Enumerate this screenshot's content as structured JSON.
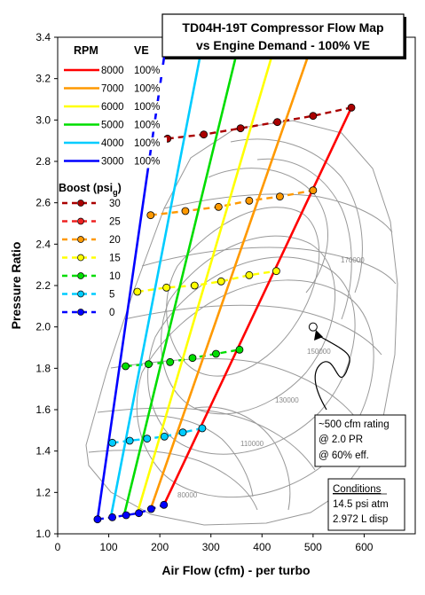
{
  "chart_data": {
    "type": "line",
    "title": [
      "TD04H-19T Compressor Flow Map",
      "vs Engine Demand - 100% VE"
    ],
    "xlabel": "Air Flow (cfm) - per turbo",
    "ylabel": "Pressure Ratio",
    "xlim": [
      0,
      700
    ],
    "ylim": [
      1.0,
      3.4
    ],
    "xticks": [
      "0",
      "100",
      "200",
      "300",
      "400",
      "500",
      "600"
    ],
    "yticks": [
      "1.0",
      "1.2",
      "1.4",
      "1.6",
      "1.8",
      "2.0",
      "2.2",
      "2.4",
      "2.6",
      "2.8",
      "3.0",
      "3.2",
      "3.4"
    ],
    "legend": {
      "rpm_header": "RPM",
      "ve_header": "VE",
      "boost_header": "Boost (psi",
      "boost_header_sub": "g",
      "boost_header_close": ")"
    },
    "rpm_lines": [
      {
        "rpm": "8000",
        "ve": "100%",
        "color": "#ff0000",
        "x": [
          208,
          575
        ],
        "y": [
          1.14,
          3.06
        ]
      },
      {
        "rpm": "7000",
        "ve": "100%",
        "color": "#ff9900",
        "x": [
          182,
          503
        ],
        "y": [
          1.12,
          3.4
        ]
      },
      {
        "rpm": "6000",
        "ve": "100%",
        "color": "#ffff00",
        "x": [
          156,
          430
        ],
        "y": [
          1.1,
          3.4
        ]
      },
      {
        "rpm": "5000",
        "ve": "100%",
        "color": "#00dd00",
        "x": [
          130,
          358
        ],
        "y": [
          1.09,
          3.4
        ]
      },
      {
        "rpm": "4000",
        "ve": "100%",
        "color": "#00ccff",
        "x": [
          104,
          286
        ],
        "y": [
          1.08,
          3.4
        ]
      },
      {
        "rpm": "3000",
        "ve": "100%",
        "color": "#0000ff",
        "x": [
          78,
          214
        ],
        "y": [
          1.07,
          3.4
        ]
      }
    ],
    "boost_lines": [
      {
        "psi": "30",
        "color": "#aa0000",
        "x": [
          215,
          575
        ],
        "y": [
          2.9,
          3.06
        ],
        "points_x": [
          215,
          286,
          358,
          430,
          500,
          575
        ],
        "points_y": [
          2.91,
          2.93,
          2.96,
          2.99,
          3.02,
          3.06
        ]
      },
      {
        "psi": "25",
        "color": "#ee2222",
        "x": [
          215,
          575
        ],
        "y": [
          2.9,
          3.06
        ],
        "points_x": [],
        "points_y": []
      },
      {
        "psi": "20",
        "color": "#ff9900",
        "x": [
          182,
          503
        ],
        "y": [
          2.54,
          2.66
        ],
        "points_x": [
          182,
          250,
          315,
          375,
          435,
          500
        ],
        "points_y": [
          2.54,
          2.56,
          2.58,
          2.61,
          2.63,
          2.66
        ]
      },
      {
        "psi": "15",
        "color": "#ffff00",
        "x": [
          156,
          430
        ],
        "y": [
          2.16,
          2.27
        ],
        "points_x": [
          156,
          213,
          268,
          320,
          375,
          428
        ],
        "points_y": [
          2.17,
          2.19,
          2.2,
          2.22,
          2.25,
          2.27
        ]
      },
      {
        "psi": "10",
        "color": "#00dd00",
        "x": [
          130,
          358
        ],
        "y": [
          1.8,
          1.89
        ],
        "points_x": [
          133,
          178,
          220,
          264,
          310,
          356
        ],
        "points_y": [
          1.81,
          1.82,
          1.83,
          1.85,
          1.87,
          1.89
        ]
      },
      {
        "psi": "5",
        "color": "#00ccff",
        "x": [
          104,
          286
        ],
        "y": [
          1.43,
          1.51
        ],
        "points_x": [
          107,
          141,
          175,
          209,
          245,
          283
        ],
        "points_y": [
          1.44,
          1.45,
          1.46,
          1.47,
          1.49,
          1.51
        ]
      },
      {
        "psi": "0",
        "color": "#0000ff",
        "x": [
          78,
          214
        ],
        "y": [
          1.07,
          1.14
        ],
        "points_x": [
          78,
          107,
          134,
          159,
          183,
          208
        ],
        "points_y": [
          1.07,
          1.08,
          1.09,
          1.1,
          1.12,
          1.14
        ]
      }
    ],
    "speed_lines": [
      "170000",
      "150000",
      "130000",
      "110000",
      "80000"
    ],
    "rating_point": {
      "x": 500,
      "y": 2.0
    },
    "annotation": [
      "~500 cfm rating",
      "@ 2.0 PR",
      "@ 60% eff."
    ],
    "conditions": {
      "title": "Conditions",
      "lines": [
        "14.5 psi atm",
        "2.972 L disp"
      ]
    }
  }
}
